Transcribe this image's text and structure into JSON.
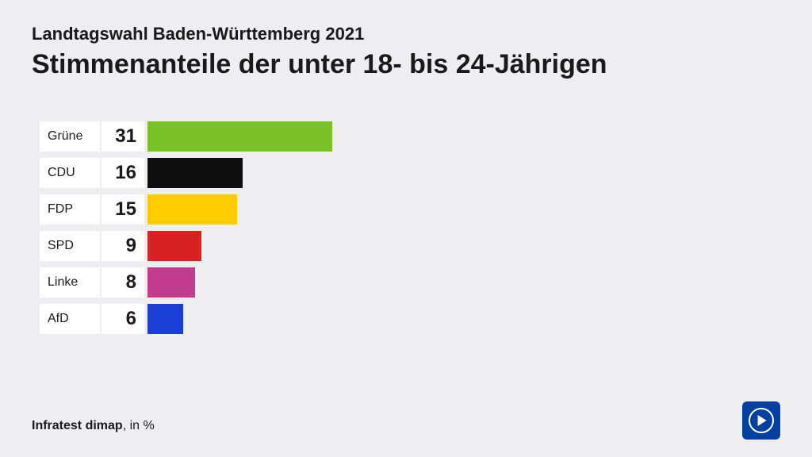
{
  "header": {
    "subtitle": "Landtagswahl Baden-Württemberg 2021",
    "title": "Stimmenanteile der unter 18- bis 24-Jährigen"
  },
  "chart": {
    "type": "bar",
    "orientation": "horizontal",
    "max_value": 100,
    "bar_scale_factor": 7.5,
    "background_color": "#eeeef0",
    "label_bg": "#ffffff",
    "value_bg": "#ffffff",
    "label_fontsize": 16,
    "value_fontsize": 24,
    "value_fontweight": "bold",
    "items": [
      {
        "label": "Grüne",
        "value": 31,
        "color": "#79c126"
      },
      {
        "label": "CDU",
        "value": 16,
        "color": "#0f0f0f"
      },
      {
        "label": "FDP",
        "value": 15,
        "color": "#ffcc00"
      },
      {
        "label": "SPD",
        "value": 9,
        "color": "#d62222"
      },
      {
        "label": "Linke",
        "value": 8,
        "color": "#c23b8e"
      },
      {
        "label": "AfD",
        "value": 6,
        "color": "#1a3fd6"
      }
    ]
  },
  "footer": {
    "source_name": "Infratest dimap",
    "source_unit": ", in %",
    "logo_bg": "#0040a0",
    "logo_fg": "#ffffff"
  }
}
